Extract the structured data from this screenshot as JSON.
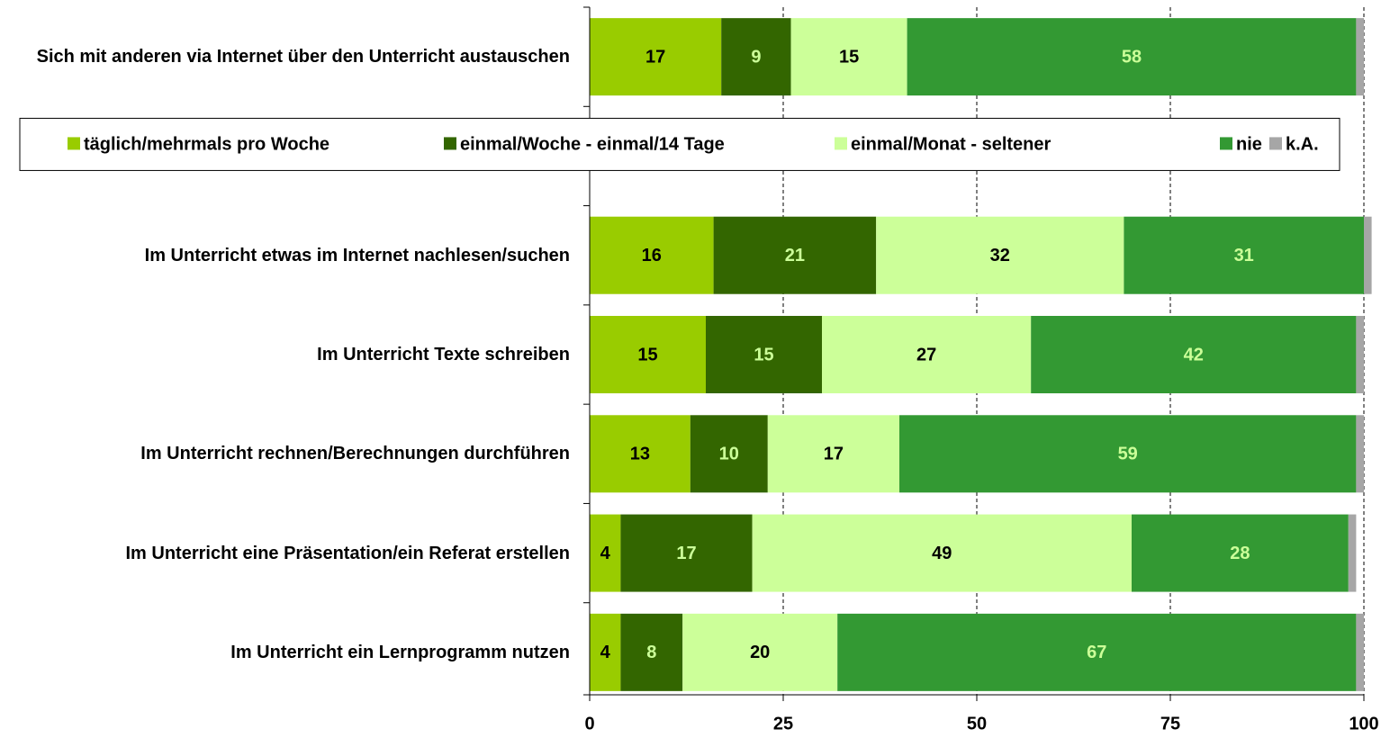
{
  "chart_data": {
    "type": "stacked_barh",
    "categories": [
      "Sich mit anderen via Internet über den Unterricht austauschen",
      null,
      "Im Unterricht etwas im Internet nachlesen/suchen",
      "Im Unterricht Texte schreiben",
      "Im Unterricht rechnen/Berechnungen durchführen",
      "Im Unterricht eine Präsentation/ein Referat erstellen",
      "Im Unterricht ein Lernprogramm nutzen"
    ],
    "series": [
      {
        "name": "täglich/mehrmals pro Woche",
        "color": "#99cc00",
        "label_color": "#000000",
        "values": [
          17,
          null,
          16,
          15,
          13,
          4,
          4
        ]
      },
      {
        "name": "einmal/Woche - einmal/14 Tage",
        "color": "#336600",
        "label_color": "#ccff99",
        "values": [
          9,
          null,
          21,
          15,
          10,
          17,
          8
        ]
      },
      {
        "name": "einmal/Monat - seltener",
        "color": "#ccff99",
        "label_color": "#000000",
        "values": [
          15,
          null,
          32,
          27,
          17,
          49,
          20
        ]
      },
      {
        "name": "nie",
        "color": "#339933",
        "label_color": "#ccff99",
        "values": [
          58,
          null,
          31,
          42,
          59,
          28,
          67
        ]
      },
      {
        "name": "k.A.",
        "color": "#a6a6a6",
        "values": [
          1,
          null,
          1,
          1,
          1,
          1,
          1
        ]
      }
    ],
    "xlim": [
      0,
      100
    ],
    "xticks": [
      0,
      25,
      50,
      75,
      100
    ],
    "grid": true,
    "legend": "middle"
  }
}
